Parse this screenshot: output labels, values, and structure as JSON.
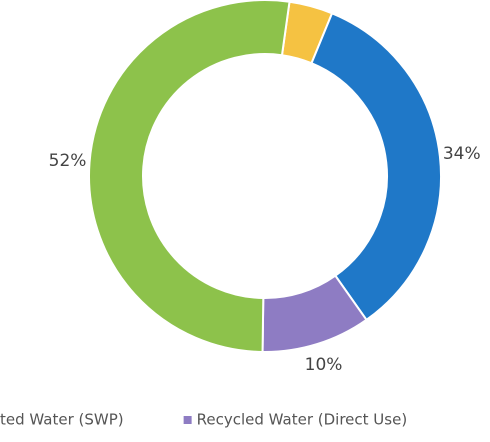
{
  "chart_data": {
    "type": "donut",
    "categories": [
      null,
      "ted Water (SWP)",
      "Recycled Water (Direct Use)",
      null
    ],
    "values": [
      4,
      34,
      10,
      52
    ],
    "value_labels": [
      "4%",
      "34%",
      "10%",
      "52%"
    ],
    "colors": [
      "#f5c242",
      "#1f78c8",
      "#8e7cc3",
      "#8dc24b"
    ],
    "legend": "bottom"
  }
}
